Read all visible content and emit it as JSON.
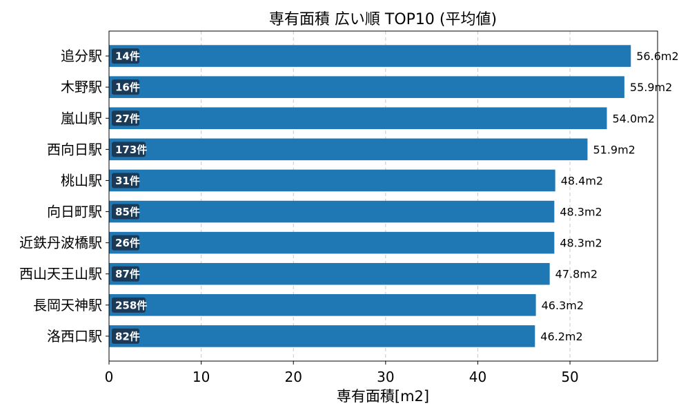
{
  "chart_data": {
    "type": "bar",
    "orientation": "horizontal",
    "title": "専有面積 広い順 TOP10 (平均値)",
    "xlabel": "専有面積[m2]",
    "ylabel": "",
    "xlim": [
      0,
      59.5
    ],
    "xticks": [
      0,
      10,
      20,
      30,
      40,
      50
    ],
    "grid": "x-dashed",
    "categories": [
      "追分駅",
      "木野駅",
      "嵐山駅",
      "西向日駅",
      "桃山駅",
      "向日町駅",
      "近鉄丹波橋駅",
      "西山天王山駅",
      "長岡天神駅",
      "洛西口駅"
    ],
    "values": [
      56.6,
      55.9,
      54.0,
      51.9,
      48.4,
      48.3,
      48.3,
      47.8,
      46.3,
      46.2
    ],
    "value_labels": [
      "56.6m2",
      "55.9m2",
      "54.0m2",
      "51.9m2",
      "48.4m2",
      "48.3m2",
      "48.3m2",
      "47.8m2",
      "46.3m2",
      "46.2m2"
    ],
    "count_labels": [
      "14件",
      "16件",
      "27件",
      "173件",
      "31件",
      "85件",
      "26件",
      "87件",
      "258件",
      "82件"
    ],
    "colors": {
      "bar": "#1f77b4",
      "badge": "#1b3a57",
      "badge_text": "#ffffff",
      "grid": "#c8c8c8",
      "axis": "#000000"
    }
  }
}
